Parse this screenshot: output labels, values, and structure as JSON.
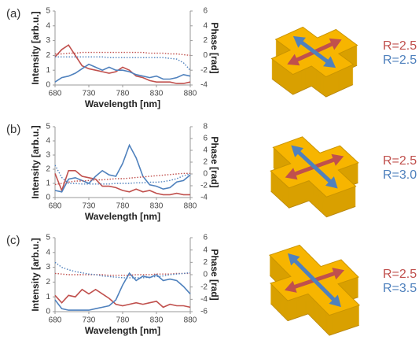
{
  "chart_data": [
    {
      "type": "line",
      "panel": "(a)",
      "xlabel": "Wavelength [nm]",
      "ylabel": "Intensity [arb.u.]",
      "y2label": "Phase [rad]",
      "x": [
        680,
        690,
        700,
        710,
        720,
        730,
        740,
        750,
        760,
        770,
        780,
        790,
        800,
        810,
        820,
        830,
        840,
        850,
        860,
        870,
        880
      ],
      "xlim": [
        680,
        880
      ],
      "xticks": [
        680,
        730,
        780,
        830,
        880
      ],
      "ylim": [
        0,
        5
      ],
      "yticks": [
        0,
        1,
        2,
        3,
        4,
        5
      ],
      "y2lim": [
        -4,
        6
      ],
      "y2ticks": [
        -4,
        -2,
        0,
        2,
        4,
        6
      ],
      "series": [
        {
          "color": "#c0504d",
          "style": "solid",
          "values": [
            1.9,
            2.4,
            2.7,
            2.0,
            1.3,
            1.1,
            1.0,
            0.9,
            0.8,
            0.9,
            1.2,
            1.0,
            0.6,
            0.5,
            0.3,
            0.2,
            0.2,
            0.2,
            0.1,
            0.1,
            0.2
          ]
        },
        {
          "color": "#4f81bd",
          "style": "solid",
          "values": [
            0.2,
            0.5,
            0.6,
            0.8,
            1.1,
            1.4,
            1.2,
            1.0,
            1.2,
            1.0,
            1.0,
            0.9,
            0.7,
            0.6,
            0.5,
            0.6,
            0.4,
            0.4,
            0.5,
            0.7,
            0.6
          ]
        },
        {
          "color": "#c0504d",
          "style": "dotted",
          "axis": "y2",
          "values": [
            0.2,
            0.2,
            0.3,
            0.3,
            0.4,
            0.4,
            0.4,
            0.4,
            0.4,
            0.4,
            0.4,
            0.4,
            0.4,
            0.4,
            0.3,
            0.3,
            0.3,
            0.2,
            0.2,
            0.1,
            0.0
          ]
        },
        {
          "color": "#4f81bd",
          "style": "dotted",
          "axis": "y2",
          "values": [
            -0.2,
            -0.2,
            -0.2,
            -0.2,
            -0.2,
            -0.2,
            -0.2,
            -0.2,
            -0.3,
            -0.3,
            -0.3,
            -0.3,
            -0.3,
            -0.3,
            -0.3,
            -0.3,
            -0.3,
            -0.4,
            -0.5,
            -1.0,
            -2.0
          ]
        }
      ],
      "annotations": [
        {
          "text": "R=2.5",
          "color": "#c0504d"
        },
        {
          "text": "R=2.5",
          "color": "#4f81bd"
        }
      ]
    },
    {
      "type": "line",
      "panel": "(b)",
      "xlabel": "Wavelength [nm]",
      "ylabel": "Intensity [arb.u.]",
      "y2label": "Phase [rad]",
      "x": [
        680,
        690,
        700,
        710,
        720,
        730,
        740,
        750,
        760,
        770,
        780,
        790,
        800,
        810,
        820,
        830,
        840,
        850,
        860,
        870,
        880
      ],
      "xlim": [
        680,
        880
      ],
      "xticks": [
        680,
        730,
        780,
        830,
        880
      ],
      "ylim": [
        0,
        5
      ],
      "yticks": [
        0,
        1,
        2,
        3,
        4,
        5
      ],
      "y2lim": [
        -4,
        8
      ],
      "y2ticks": [
        -4,
        -2,
        0,
        2,
        4,
        6,
        8
      ],
      "series": [
        {
          "color": "#c0504d",
          "style": "solid",
          "values": [
            1.7,
            0.5,
            1.9,
            1.9,
            1.5,
            1.4,
            1.3,
            0.8,
            0.8,
            0.7,
            0.5,
            0.4,
            0.6,
            0.4,
            0.5,
            0.3,
            0.2,
            0.2,
            0.3,
            0.2,
            0.2
          ]
        },
        {
          "color": "#4f81bd",
          "style": "solid",
          "values": [
            0.5,
            0.4,
            1.3,
            1.4,
            1.2,
            1.0,
            1.5,
            1.9,
            1.6,
            1.5,
            2.4,
            3.7,
            2.8,
            1.5,
            0.9,
            0.8,
            0.6,
            0.7,
            1.1,
            1.2,
            1.6
          ]
        },
        {
          "color": "#c0504d",
          "style": "dotted",
          "axis": "y2",
          "values": [
            -1.8,
            -1.6,
            -1.4,
            -1.2,
            -1.2,
            -1.1,
            -1.0,
            -1.0,
            -0.9,
            -0.8,
            -0.8,
            -0.7,
            -0.6,
            -0.5,
            -0.4,
            -0.3,
            -0.2,
            -0.1,
            0.0,
            0.1,
            0.1
          ]
        },
        {
          "color": "#4f81bd",
          "style": "dotted",
          "axis": "y2",
          "values": [
            1.5,
            -0.6,
            -1.6,
            -1.6,
            -1.7,
            -1.7,
            -1.7,
            -1.7,
            -1.7,
            -1.6,
            -1.6,
            -1.6,
            -1.5,
            -1.5,
            -1.4,
            -1.4,
            -1.3,
            -1.1,
            -0.8,
            -0.3,
            0.0
          ]
        }
      ],
      "annotations": [
        {
          "text": "R=2.5",
          "color": "#c0504d"
        },
        {
          "text": "R=3.0",
          "color": "#4f81bd"
        }
      ]
    },
    {
      "type": "line",
      "panel": "(c)",
      "xlabel": "Wavelength [nm]",
      "ylabel": "Intensity [arb.u.]",
      "y2label": "Phase [rad]",
      "x": [
        680,
        690,
        700,
        710,
        720,
        730,
        740,
        750,
        760,
        770,
        780,
        790,
        800,
        810,
        820,
        830,
        840,
        850,
        860,
        870,
        880
      ],
      "xlim": [
        680,
        880
      ],
      "xticks": [
        680,
        730,
        780,
        830,
        880
      ],
      "ylim": [
        0,
        5
      ],
      "yticks": [
        0,
        1,
        2,
        3,
        4,
        5
      ],
      "y2lim": [
        -6,
        6
      ],
      "y2ticks": [
        -6,
        -4,
        -2,
        0,
        2,
        4,
        6
      ],
      "series": [
        {
          "color": "#c0504d",
          "style": "solid",
          "values": [
            1.1,
            0.6,
            1.1,
            1.0,
            1.5,
            1.2,
            1.5,
            1.2,
            0.9,
            0.5,
            0.4,
            0.5,
            0.6,
            0.5,
            0.6,
            0.7,
            0.3,
            0.5,
            0.4,
            0.4,
            0.3
          ]
        },
        {
          "color": "#4f81bd",
          "style": "solid",
          "values": [
            0.8,
            0.2,
            0.1,
            0.1,
            0.1,
            0.1,
            0.2,
            0.3,
            0.4,
            0.8,
            1.8,
            2.6,
            2.1,
            2.4,
            2.3,
            2.5,
            2.1,
            2.2,
            2.1,
            1.7,
            1.2
          ]
        },
        {
          "color": "#c0504d",
          "style": "dotted",
          "axis": "y2",
          "values": [
            0.2,
            0.1,
            0.0,
            0.0,
            0.0,
            0.0,
            0.0,
            0.0,
            -0.1,
            -0.1,
            -0.1,
            -0.1,
            0.0,
            0.0,
            0.0,
            0.1,
            0.1,
            0.1,
            0.2,
            0.2,
            0.2
          ]
        },
        {
          "color": "#4f81bd",
          "style": "dotted",
          "axis": "y2",
          "values": [
            2.0,
            1.2,
            0.8,
            0.5,
            0.3,
            0.1,
            0.0,
            -0.2,
            -0.3,
            -0.4,
            -0.5,
            -0.5,
            -0.5,
            -0.5,
            -0.4,
            -0.3,
            -0.2,
            0.0,
            0.1,
            0.2,
            0.3
          ]
        }
      ],
      "annotations": [
        {
          "text": "R=2.5",
          "color": "#c0504d"
        },
        {
          "text": "R=3.5",
          "color": "#4f81bd"
        }
      ]
    }
  ]
}
